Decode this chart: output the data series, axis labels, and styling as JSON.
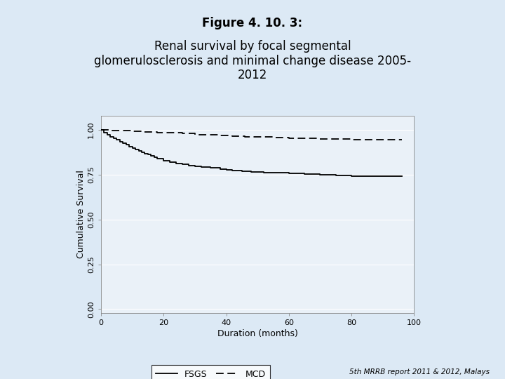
{
  "title_bold": "Figure 4. 10. 3:",
  "title_rest": " Renal survival by focal segmental\nglomerulosclerosis and minimal change disease 2005-\n2012",
  "xlabel": "Duration (months)",
  "ylabel": "Cumulative Survival",
  "xlim": [
    0,
    100
  ],
  "ylim": [
    -0.02,
    1.08
  ],
  "yticks": [
    0.0,
    0.25,
    0.5,
    0.75,
    1.0
  ],
  "ytick_labels": [
    "0.00",
    "0.25",
    "0.50",
    "0.75",
    "1.00"
  ],
  "xticks": [
    0,
    20,
    40,
    60,
    80,
    100
  ],
  "bg_color": "#dce9f5",
  "plot_bg_color": "#eaf1f8",
  "grid_color": "#ffffff",
  "footnote": "5th MRRB report 2011 & 2012, Malays",
  "fsgs_x": [
    0,
    1,
    2,
    3,
    4,
    5,
    6,
    7,
    8,
    9,
    10,
    11,
    12,
    13,
    14,
    15,
    16,
    17,
    18,
    20,
    22,
    24,
    26,
    28,
    30,
    32,
    35,
    38,
    40,
    42,
    45,
    48,
    52,
    56,
    60,
    65,
    70,
    75,
    80,
    90,
    96
  ],
  "fsgs_y": [
    1.0,
    0.985,
    0.972,
    0.962,
    0.953,
    0.944,
    0.935,
    0.926,
    0.917,
    0.908,
    0.9,
    0.892,
    0.884,
    0.876,
    0.869,
    0.862,
    0.855,
    0.848,
    0.841,
    0.829,
    0.82,
    0.813,
    0.807,
    0.802,
    0.797,
    0.793,
    0.788,
    0.783,
    0.779,
    0.775,
    0.771,
    0.767,
    0.763,
    0.76,
    0.756,
    0.752,
    0.749,
    0.746,
    0.743,
    0.74,
    0.74
  ],
  "mcd_x": [
    0,
    3,
    6,
    10,
    14,
    18,
    22,
    26,
    30,
    34,
    38,
    42,
    46,
    50,
    55,
    60,
    65,
    70,
    75,
    80,
    90,
    96
  ],
  "mcd_y": [
    1.0,
    0.998,
    0.995,
    0.992,
    0.989,
    0.986,
    0.983,
    0.979,
    0.975,
    0.972,
    0.969,
    0.966,
    0.963,
    0.961,
    0.958,
    0.955,
    0.953,
    0.951,
    0.949,
    0.947,
    0.945,
    0.945
  ]
}
